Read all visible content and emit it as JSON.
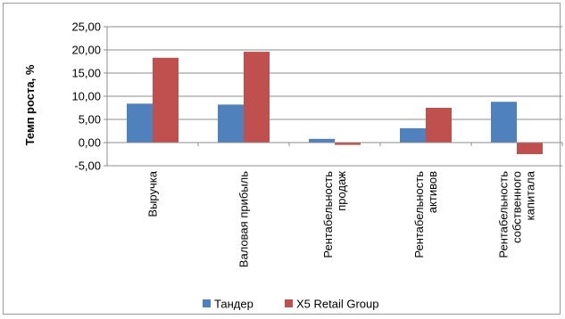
{
  "chart_data": {
    "type": "bar",
    "title": "",
    "xlabel": "",
    "ylabel": "Темп роста, %",
    "ylim": [
      -5,
      25
    ],
    "yticks": [
      25,
      20,
      15,
      10,
      5,
      0,
      -5
    ],
    "ytick_labels": [
      "25,00",
      "20,00",
      "15,00",
      "10,00",
      "5,00",
      "0,00",
      "-5,00"
    ],
    "categories": [
      [
        "Выручка"
      ],
      [
        "Валовая прибыль"
      ],
      [
        "Рентабельность",
        "продаж"
      ],
      [
        "Рентабельность",
        "активов"
      ],
      [
        "Рентабельность",
        "собственного",
        "капитала"
      ]
    ],
    "series": [
      {
        "name": "Тандер",
        "color": "#4F81BD",
        "values": [
          8.4,
          8.2,
          0.8,
          3.1,
          8.8
        ]
      },
      {
        "name": "X5 Retail Group",
        "color": "#C0504D",
        "values": [
          18.3,
          19.6,
          -0.5,
          7.5,
          -2.5
        ]
      }
    ],
    "grid": true,
    "legend_position": "bottom"
  }
}
